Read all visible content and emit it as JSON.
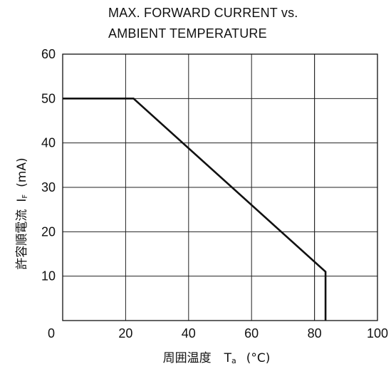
{
  "chart_data": {
    "type": "line",
    "title_lines": [
      "MAX. FORWARD CURRENT vs.",
      "AMBIENT TEMPERATURE"
    ],
    "xlabel": {
      "text": "周囲温度",
      "symbol": "T",
      "subscript": "a",
      "unit": "(°C)"
    },
    "ylabel": {
      "text": "許容順電流",
      "symbol": "I",
      "subscript": "F",
      "unit": "(mA)"
    },
    "xlim": [
      0,
      100
    ],
    "ylim": [
      0,
      60
    ],
    "x_ticks": [
      0,
      20,
      40,
      60,
      80,
      100
    ],
    "y_ticks": [
      10,
      20,
      30,
      40,
      50,
      60
    ],
    "origin_label": "0",
    "grid": true,
    "series": [
      {
        "x": [
          0,
          22.5,
          83.5,
          83.5
        ],
        "y": [
          50,
          50,
          11,
          0
        ]
      }
    ],
    "extra_gridline_x": 80
  }
}
